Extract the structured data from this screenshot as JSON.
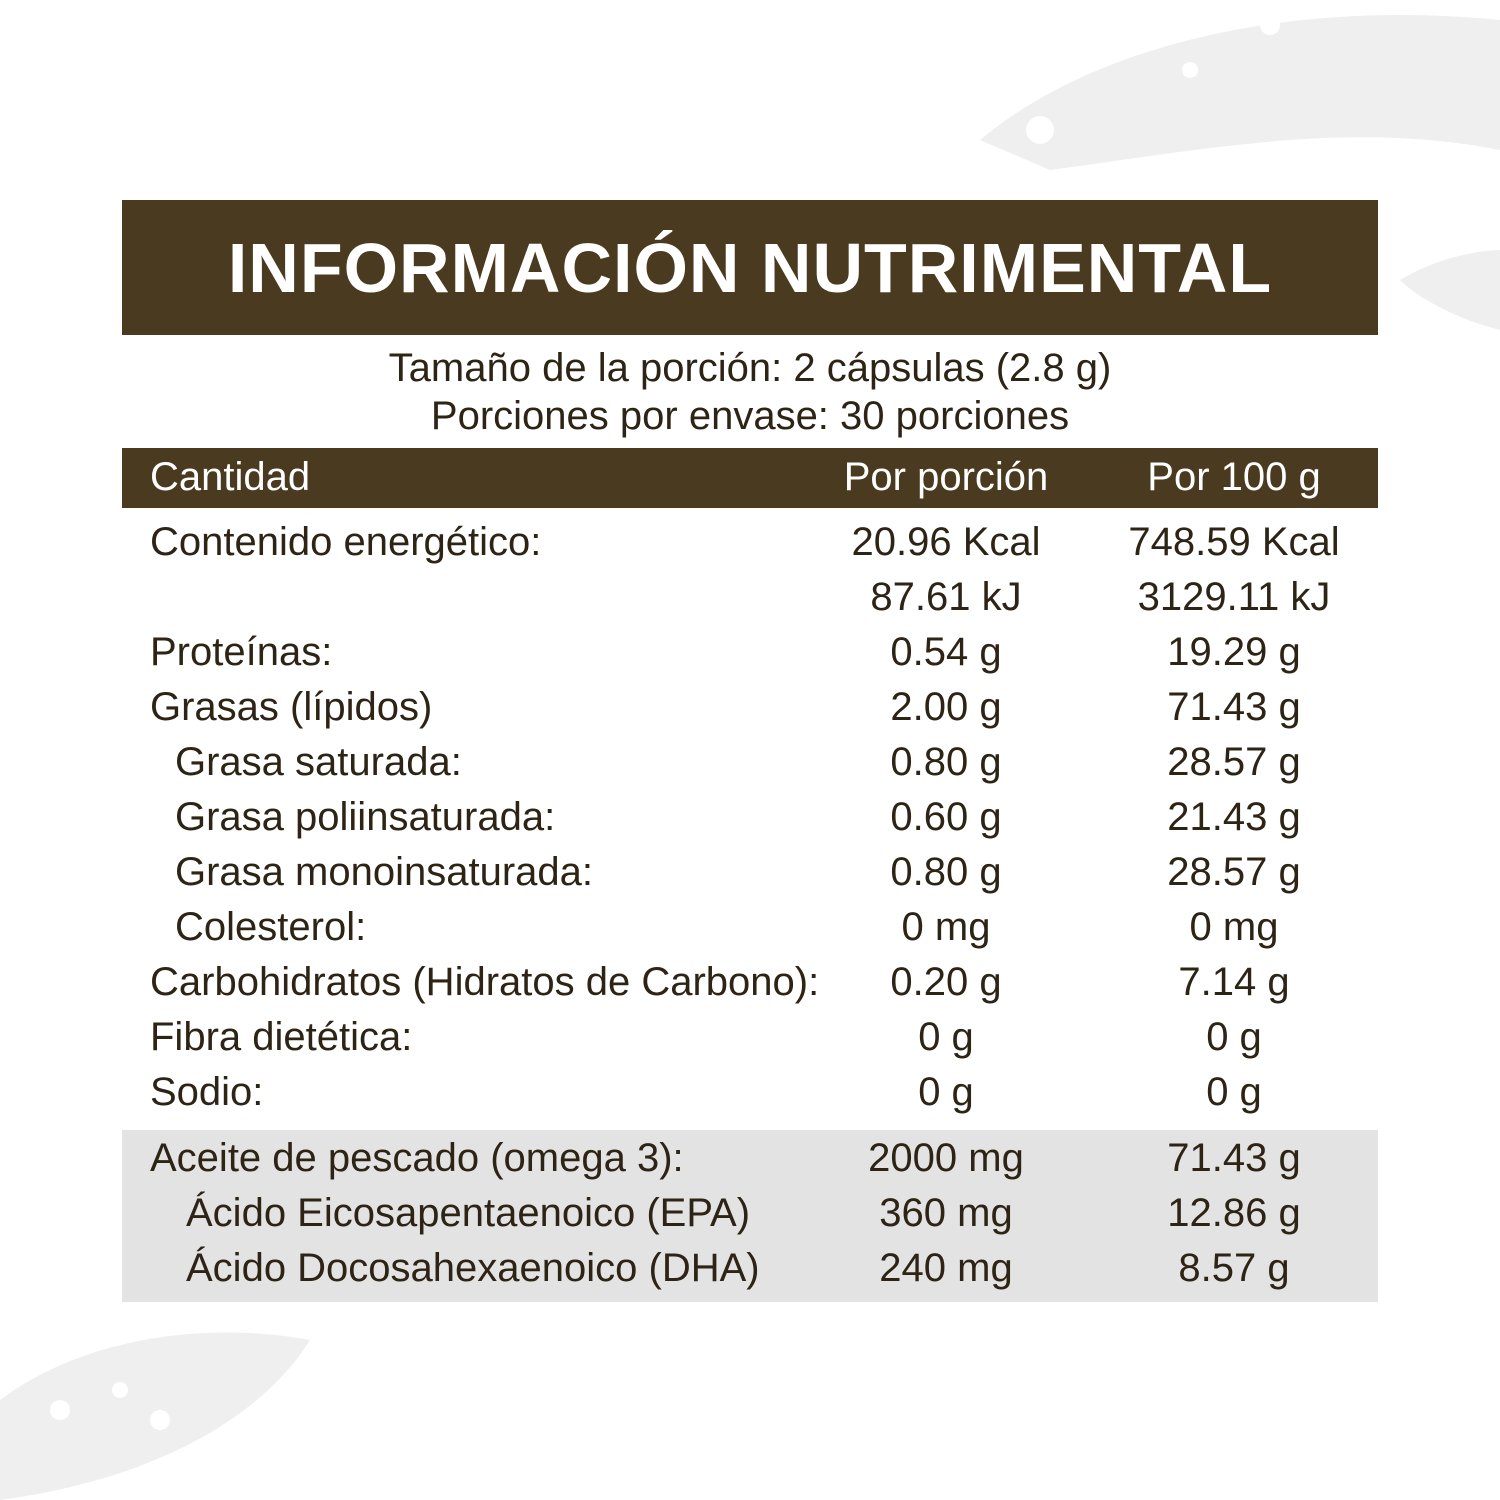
{
  "title": "INFORMACIÓN NUTRIMENTAL",
  "serving": [
    "Tamaño de la porción: 2 cápsulas (2.8 g)",
    "Porciones por envase: 30 porciones"
  ],
  "table": {
    "header": [
      "Cantidad",
      "Por porción",
      "Por 100 g"
    ],
    "rows": [
      {
        "label": "Contenido energético:",
        "per_portion": "20.96 Kcal",
        "per_100g": "748.59 Kcal"
      },
      {
        "per_portion": "87.61 kJ",
        "per_100g": "3129.11 kJ"
      },
      {
        "label": "Proteínas:",
        "per_portion": "0.54 g",
        "per_100g": "19.29 g"
      },
      {
        "label": "Grasas (lípidos)",
        "per_portion": "2.00 g",
        "per_100g": "71.43 g"
      },
      {
        "label": "Grasa saturada:",
        "per_portion": "0.80 g",
        "per_100g": "28.57 g"
      },
      {
        "label": "Grasa poliinsaturada:",
        "per_portion": "0.60 g",
        "per_100g": "21.43 g"
      },
      {
        "label": "Grasa monoinsaturada:",
        "per_portion": "0.80 g",
        "per_100g": "28.57 g"
      },
      {
        "label": "Colesterol:",
        "per_portion": "0 mg",
        "per_100g": "0 mg"
      },
      {
        "label": "Carbohidratos (Hidratos de Carbono):",
        "per_portion": "0.20 g",
        "per_100g": "7.14 g"
      },
      {
        "label": "Fibra dietética:",
        "per_portion": "0 g",
        "per_100g": "0 g"
      },
      {
        "label": "Sodio:",
        "per_portion": "0 g",
        "per_100g": "0 g"
      }
    ]
  },
  "omega": {
    "rows": [
      {
        "label": "Aceite de pescado (omega 3):",
        "per_portion": "2000 mg",
        "per_100g": "71.43 g"
      },
      {
        "label": "Ácido Eicosapentaenoico (EPA)",
        "per_portion": "360 mg",
        "per_100g": "12.86 g"
      },
      {
        "label": "Ácido Docosahexaenoico (DHA)",
        "per_portion": "240 mg",
        "per_100g": "8.57 g"
      }
    ]
  }
}
